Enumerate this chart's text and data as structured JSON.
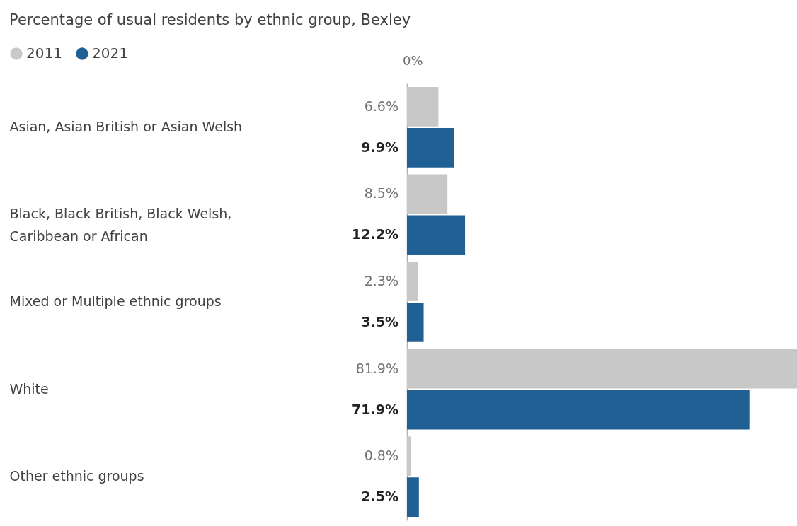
{
  "chart_data": {
    "type": "bar",
    "orientation": "horizontal",
    "title": "Percentage of usual residents by ethnic group, Bexley",
    "categories": [
      "Asian, Asian British or Asian Welsh",
      "Black, Black British, Black Welsh, Caribbean or African",
      "Mixed or Multiple ethnic groups",
      "White",
      "Other ethnic groups"
    ],
    "series": [
      {
        "name": "2011",
        "color": "#c8c8c8",
        "values": [
          6.6,
          8.5,
          2.3,
          81.9,
          0.8
        ],
        "value_labels": [
          "6.6%",
          "8.5%",
          "2.3%",
          "81.9%",
          "0.8%"
        ]
      },
      {
        "name": "2021",
        "color": "#206095",
        "values": [
          9.9,
          12.2,
          3.5,
          71.9,
          2.5
        ],
        "value_labels": [
          "9.9%",
          "12.2%",
          "3.5%",
          "71.9%",
          "2.5%"
        ]
      }
    ],
    "annotations": [
      "0%"
    ],
    "grid": false,
    "legend": "top left"
  }
}
